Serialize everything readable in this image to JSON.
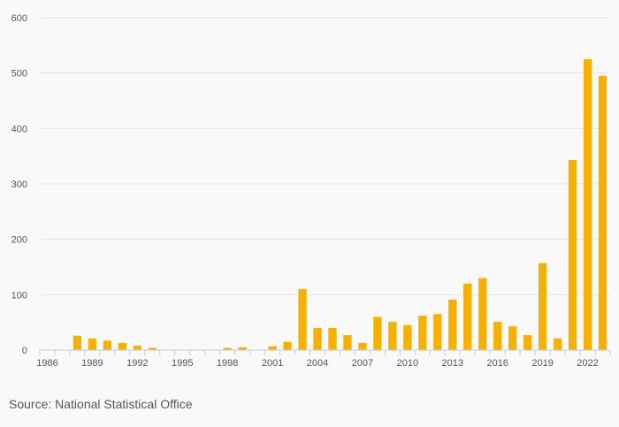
{
  "chart_data": {
    "type": "bar",
    "title": "",
    "xlabel": "",
    "ylabel": "",
    "ylim": [
      0,
      600
    ],
    "y_ticks": [
      0,
      100,
      200,
      300,
      400,
      500,
      600
    ],
    "x_tick_labels": [
      "1986",
      "1989",
      "1992",
      "1995",
      "1998",
      "2001",
      "2004",
      "2007",
      "2010",
      "2013",
      "2016",
      "2019",
      "2022"
    ],
    "grid": "horizontal",
    "categories": [
      "1986",
      "1987",
      "1988",
      "1989",
      "1990",
      "1991",
      "1992",
      "1993",
      "1994",
      "1995",
      "1996",
      "1997",
      "1998",
      "1999",
      "2000",
      "2001",
      "2002",
      "2003",
      "2004",
      "2005",
      "2006",
      "2007",
      "2008",
      "2009",
      "2010",
      "2011",
      "2012",
      "2013",
      "2014",
      "2015",
      "2016",
      "2017",
      "2018",
      "2019",
      "2020",
      "2021",
      "2022",
      "2023"
    ],
    "values": [
      0,
      0,
      26,
      21,
      17,
      13,
      8,
      4,
      0,
      0,
      0,
      0,
      4,
      5,
      0,
      7,
      15,
      110,
      40,
      40,
      27,
      13,
      60,
      51,
      45,
      62,
      65,
      91,
      120,
      130,
      51,
      43,
      27,
      157,
      21,
      343,
      525,
      495
    ],
    "bar_color": "#f5b000"
  },
  "source": "Source: National Statistical Office"
}
